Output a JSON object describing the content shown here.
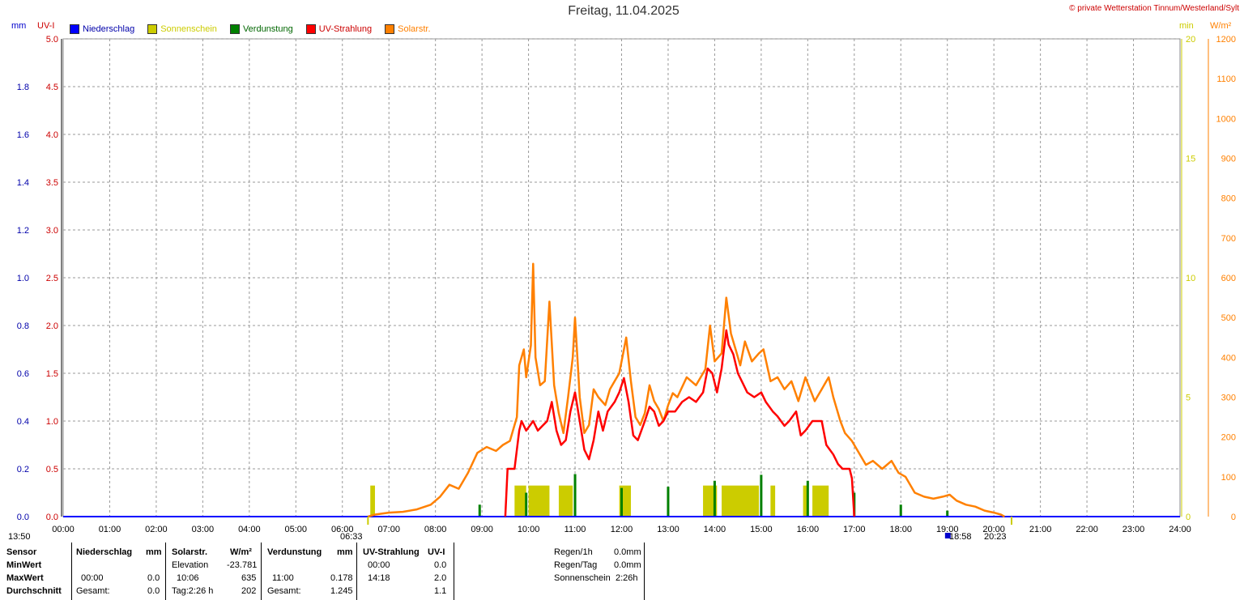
{
  "title": "Freitag, 11.04.2025",
  "copyright": "© private Wetterstation Tinnum/Westerland/Sylt",
  "units": {
    "mm": "mm",
    "uvi": "UV-I",
    "min": "min",
    "wm2": "W/m²"
  },
  "legend": [
    {
      "label": "Niederschlag",
      "color": "#0000ff"
    },
    {
      "label": "Sonnenschein",
      "color": "#cccc00"
    },
    {
      "label": "Verdunstung",
      "color": "#008000"
    },
    {
      "label": "UV-Strahlung",
      "color": "#ff0000"
    },
    {
      "label": "Solarstr.",
      "color": "#ff8000"
    }
  ],
  "footer": {
    "start_time": "13:50",
    "sunrise": "06:33",
    "sunset": "20:23",
    "marker": "18:58"
  },
  "table": {
    "sensor": "Sensor",
    "min": "MinWert",
    "max": "MaxWert",
    "avg": "Durchschnitt",
    "nieder": {
      "head": "Niederschlag",
      "unit": "mm",
      "max_time": "00:00",
      "max_val": "0.0",
      "sum_label": "Gesamt:",
      "sum_val": "0.0"
    },
    "solar": {
      "head": "Solarstr.",
      "unit": "W/m²",
      "min_label": "Elevation",
      "min_val": "-23.781",
      "max_time": "10:06",
      "max_val": "635",
      "avg_label": "Tag:2:26 h",
      "avg_val": "202"
    },
    "verd": {
      "head": "Verdunstung",
      "unit": "mm",
      "max_time": "11:00",
      "max_val": "0.178",
      "sum_label": "Gesamt:",
      "sum_val": "1.245"
    },
    "uv": {
      "head": "UV-Strahlung",
      "unit": "UV-I",
      "min_time": "00:00",
      "min_val": "0.0",
      "max_time": "14:18",
      "max_val": "2.0",
      "avg_val": "1.1"
    },
    "extra": {
      "regen1h_label": "Regen/1h",
      "regen1h_val": "0.0mm",
      "regentag_label": "Regen/Tag",
      "regentag_val": "0.0mm",
      "sonne_label": "Sonnenschein",
      "sonne_val": "2:26h"
    }
  },
  "chart_data": {
    "type": "line",
    "x_axis": {
      "label": "",
      "range": [
        "00:00",
        "24:00"
      ],
      "ticks": [
        "00:00",
        "01:00",
        "02:00",
        "03:00",
        "04:00",
        "05:00",
        "06:00",
        "07:00",
        "08:00",
        "09:00",
        "10:00",
        "11:00",
        "12:00",
        "13:00",
        "14:00",
        "15:00",
        "16:00",
        "17:00",
        "18:00",
        "19:00",
        "20:00",
        "21:00",
        "22:00",
        "23:00",
        "24:00"
      ]
    },
    "y_axes": {
      "mm": {
        "range": [
          0,
          2.0
        ],
        "ticks": [
          "0.0",
          "0.2",
          "0.4",
          "0.6",
          "0.8",
          "1.0",
          "1.2",
          "1.4",
          "1.6",
          "1.8"
        ]
      },
      "uvi": {
        "range": [
          0,
          5.0
        ],
        "ticks": [
          "0.0",
          "0.5",
          "1.0",
          "1.5",
          "2.0",
          "2.5",
          "3.0",
          "3.5",
          "4.0",
          "4.5",
          "5.0"
        ]
      },
      "min": {
        "range": [
          0,
          20
        ],
        "ticks": [
          "0",
          "5",
          "10",
          "15",
          "20"
        ]
      },
      "wm2": {
        "range": [
          0,
          1200
        ],
        "ticks": [
          "0",
          "100",
          "200",
          "300",
          "400",
          "500",
          "600",
          "700",
          "800",
          "900",
          "1000",
          "1100",
          "1200"
        ]
      }
    },
    "grid": true,
    "series": [
      {
        "name": "Solarstr.",
        "axis": "wm2",
        "color": "#ff8000",
        "points": [
          [
            6.55,
            0
          ],
          [
            6.7,
            5
          ],
          [
            7.0,
            10
          ],
          [
            7.3,
            12
          ],
          [
            7.6,
            18
          ],
          [
            7.9,
            30
          ],
          [
            8.1,
            50
          ],
          [
            8.3,
            80
          ],
          [
            8.5,
            70
          ],
          [
            8.7,
            110
          ],
          [
            8.9,
            160
          ],
          [
            9.1,
            175
          ],
          [
            9.3,
            165
          ],
          [
            9.45,
            180
          ],
          [
            9.6,
            190
          ],
          [
            9.75,
            250
          ],
          [
            9.8,
            380
          ],
          [
            9.9,
            420
          ],
          [
            9.95,
            350
          ],
          [
            10.05,
            430
          ],
          [
            10.1,
            635
          ],
          [
            10.15,
            400
          ],
          [
            10.25,
            330
          ],
          [
            10.35,
            340
          ],
          [
            10.45,
            540
          ],
          [
            10.55,
            330
          ],
          [
            10.65,
            260
          ],
          [
            10.75,
            210
          ],
          [
            10.85,
            300
          ],
          [
            10.95,
            400
          ],
          [
            11.0,
            500
          ],
          [
            11.1,
            300
          ],
          [
            11.2,
            210
          ],
          [
            11.3,
            230
          ],
          [
            11.4,
            320
          ],
          [
            11.5,
            300
          ],
          [
            11.65,
            280
          ],
          [
            11.75,
            320
          ],
          [
            11.85,
            340
          ],
          [
            11.95,
            360
          ],
          [
            12.05,
            420
          ],
          [
            12.1,
            450
          ],
          [
            12.2,
            340
          ],
          [
            12.3,
            250
          ],
          [
            12.4,
            230
          ],
          [
            12.5,
            260
          ],
          [
            12.6,
            330
          ],
          [
            12.7,
            290
          ],
          [
            12.8,
            270
          ],
          [
            12.9,
            240
          ],
          [
            13.0,
            280
          ],
          [
            13.1,
            310
          ],
          [
            13.2,
            300
          ],
          [
            13.4,
            350
          ],
          [
            13.6,
            330
          ],
          [
            13.8,
            370
          ],
          [
            13.9,
            480
          ],
          [
            14.0,
            390
          ],
          [
            14.15,
            410
          ],
          [
            14.25,
            550
          ],
          [
            14.35,
            460
          ],
          [
            14.45,
            420
          ],
          [
            14.55,
            380
          ],
          [
            14.65,
            440
          ],
          [
            14.8,
            390
          ],
          [
            14.95,
            410
          ],
          [
            15.05,
            420
          ],
          [
            15.2,
            340
          ],
          [
            15.35,
            350
          ],
          [
            15.5,
            320
          ],
          [
            15.65,
            340
          ],
          [
            15.8,
            290
          ],
          [
            15.95,
            350
          ],
          [
            16.05,
            320
          ],
          [
            16.15,
            290
          ],
          [
            16.3,
            320
          ],
          [
            16.45,
            350
          ],
          [
            16.55,
            300
          ],
          [
            16.7,
            240
          ],
          [
            16.8,
            210
          ],
          [
            16.95,
            190
          ],
          [
            17.1,
            160
          ],
          [
            17.25,
            130
          ],
          [
            17.4,
            140
          ],
          [
            17.6,
            120
          ],
          [
            17.8,
            140
          ],
          [
            17.95,
            110
          ],
          [
            18.1,
            100
          ],
          [
            18.3,
            60
          ],
          [
            18.5,
            50
          ],
          [
            18.7,
            45
          ],
          [
            18.9,
            50
          ],
          [
            19.05,
            55
          ],
          [
            19.2,
            40
          ],
          [
            19.4,
            30
          ],
          [
            19.6,
            25
          ],
          [
            19.8,
            15
          ],
          [
            20.0,
            10
          ],
          [
            20.15,
            5
          ],
          [
            20.23,
            0
          ]
        ]
      },
      {
        "name": "UV-Strahlung",
        "axis": "uvi",
        "color": "#ff0000",
        "points": [
          [
            9.5,
            0
          ],
          [
            9.55,
            0.5
          ],
          [
            9.7,
            0.5
          ],
          [
            9.75,
            0.7
          ],
          [
            9.8,
            0.9
          ],
          [
            9.85,
            1.0
          ],
          [
            9.95,
            0.9
          ],
          [
            10.1,
            1.0
          ],
          [
            10.2,
            0.9
          ],
          [
            10.3,
            0.95
          ],
          [
            10.4,
            1.0
          ],
          [
            10.5,
            1.2
          ],
          [
            10.6,
            0.9
          ],
          [
            10.7,
            0.75
          ],
          [
            10.8,
            0.8
          ],
          [
            10.9,
            1.1
          ],
          [
            11.0,
            1.3
          ],
          [
            11.1,
            1.0
          ],
          [
            11.2,
            0.7
          ],
          [
            11.3,
            0.6
          ],
          [
            11.4,
            0.8
          ],
          [
            11.5,
            1.1
          ],
          [
            11.6,
            0.9
          ],
          [
            11.7,
            1.1
          ],
          [
            11.85,
            1.2
          ],
          [
            11.95,
            1.3
          ],
          [
            12.05,
            1.45
          ],
          [
            12.15,
            1.2
          ],
          [
            12.25,
            0.85
          ],
          [
            12.35,
            0.8
          ],
          [
            12.5,
            1.0
          ],
          [
            12.6,
            1.15
          ],
          [
            12.7,
            1.1
          ],
          [
            12.8,
            0.95
          ],
          [
            12.9,
            1.0
          ],
          [
            13.0,
            1.1
          ],
          [
            13.15,
            1.1
          ],
          [
            13.3,
            1.2
          ],
          [
            13.45,
            1.25
          ],
          [
            13.6,
            1.2
          ],
          [
            13.75,
            1.3
          ],
          [
            13.85,
            1.55
          ],
          [
            13.95,
            1.5
          ],
          [
            14.05,
            1.3
          ],
          [
            14.15,
            1.55
          ],
          [
            14.25,
            1.95
          ],
          [
            14.3,
            1.8
          ],
          [
            14.4,
            1.7
          ],
          [
            14.5,
            1.5
          ],
          [
            14.6,
            1.4
          ],
          [
            14.7,
            1.3
          ],
          [
            14.85,
            1.25
          ],
          [
            15.0,
            1.3
          ],
          [
            15.1,
            1.2
          ],
          [
            15.25,
            1.1
          ],
          [
            15.35,
            1.05
          ],
          [
            15.5,
            0.95
          ],
          [
            15.6,
            1.0
          ],
          [
            15.75,
            1.1
          ],
          [
            15.85,
            0.85
          ],
          [
            15.95,
            0.9
          ],
          [
            16.1,
            1.0
          ],
          [
            16.3,
            1.0
          ],
          [
            16.4,
            0.75
          ],
          [
            16.55,
            0.65
          ],
          [
            16.65,
            0.55
          ],
          [
            16.75,
            0.5
          ],
          [
            16.9,
            0.5
          ],
          [
            16.95,
            0.4
          ],
          [
            17.0,
            0
          ]
        ]
      }
    ],
    "bars": [
      {
        "name": "Sonnenschein",
        "axis": "min",
        "color": "#cccc00",
        "intervals": [
          [
            6.6,
            6.7,
            1.3
          ],
          [
            9.7,
            9.95,
            1.3
          ],
          [
            10.0,
            10.45,
            1.3
          ],
          [
            10.65,
            10.95,
            1.3
          ],
          [
            11.95,
            12.2,
            1.3
          ],
          [
            13.75,
            14.05,
            1.3
          ],
          [
            14.15,
            14.95,
            1.3
          ],
          [
            15.2,
            15.3,
            1.3
          ],
          [
            15.9,
            16.0,
            1.3
          ],
          [
            16.1,
            16.45,
            1.3
          ]
        ]
      },
      {
        "name": "Verdunstung",
        "axis": "mm",
        "color": "#008000",
        "values": [
          [
            8.95,
            0.05
          ],
          [
            9.95,
            0.1
          ],
          [
            11.0,
            0.178
          ],
          [
            12.0,
            0.12
          ],
          [
            13.0,
            0.125
          ],
          [
            14.0,
            0.15
          ],
          [
            15.0,
            0.175
          ],
          [
            16.0,
            0.15
          ],
          [
            17.0,
            0.1
          ],
          [
            18.0,
            0.05
          ],
          [
            19.0,
            0.025
          ]
        ]
      }
    ]
  }
}
